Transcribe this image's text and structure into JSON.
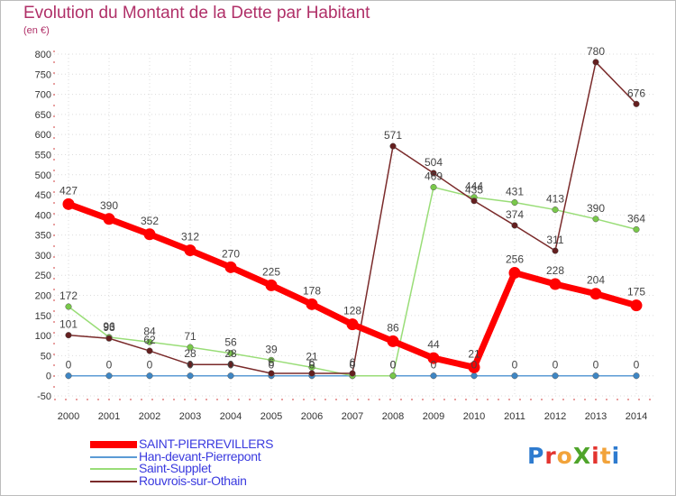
{
  "title": "Evolution du Montant de la Dette par Habitant",
  "unit": "(en €)",
  "logo": {
    "text": "ProXiti",
    "colors": [
      "#2e7bcf",
      "#e3342f",
      "#f2a33a",
      "#4fa42a",
      "#e3342f",
      "#f2a33a",
      "#2e7bcf"
    ]
  },
  "chart_data": {
    "type": "line",
    "title": "Evolution du Montant de la Dette par Habitant",
    "ylabel": "(en €)",
    "xlabel": "",
    "ylim": [
      -50,
      800
    ],
    "yticks": [
      -50,
      0,
      50,
      100,
      150,
      200,
      250,
      300,
      350,
      400,
      450,
      500,
      550,
      600,
      650,
      700,
      750,
      800
    ],
    "x": [
      "2000",
      "2001",
      "2002",
      "2003",
      "2004",
      "2005",
      "2006",
      "2007",
      "2008",
      "2009",
      "2010",
      "2011",
      "2012",
      "2013",
      "2014"
    ],
    "grid": true,
    "legend": "bottom-left",
    "series": [
      {
        "name": "Han-devant-Pierrepont",
        "color": "#5b9bd5",
        "marker": "#3e86c4",
        "values": [
          0,
          0,
          0,
          0,
          0,
          0,
          0,
          0,
          0,
          0,
          0,
          0,
          0,
          0,
          0
        ],
        "labels": [
          "0",
          "0",
          "0",
          "0",
          "0",
          "0",
          "0",
          "0",
          "0",
          "0",
          "0",
          "0",
          "0",
          "0",
          "0"
        ]
      },
      {
        "name": "Saint-Supplet",
        "color": "#99dd77",
        "marker": "#79c84a",
        "values": [
          172,
          96,
          84,
          71,
          56,
          39,
          21,
          0,
          0,
          469,
          444,
          431,
          413,
          390,
          364
        ],
        "labels": [
          "172",
          "96",
          "84",
          "71",
          "56",
          "39",
          "21",
          "0",
          "0",
          "469",
          "444",
          "431",
          "413",
          "390",
          "364"
        ]
      },
      {
        "name": "Rouvrois-sur-Othain",
        "color": "#7a2a2a",
        "marker": "#641f1f",
        "values": [
          101,
          93,
          62,
          28,
          28,
          6,
          6,
          6,
          571,
          504,
          435,
          374,
          311,
          780,
          676
        ],
        "labels": [
          "101",
          "93",
          "62",
          "28",
          "28",
          "6",
          "6",
          "6",
          "571",
          "504",
          "435",
          "374",
          "311",
          "780",
          "676"
        ]
      },
      {
        "name": "SAINT-PIERREVILLERS",
        "color": "#ff0000",
        "marker": "#ff0000",
        "values": [
          427,
          390,
          352,
          312,
          270,
          225,
          178,
          128,
          86,
          44,
          21,
          256,
          228,
          204,
          175
        ],
        "labels": [
          "427",
          "390",
          "352",
          "312",
          "270",
          "225",
          "178",
          "128",
          "86",
          "44",
          "21",
          "256",
          "228",
          "204",
          "175"
        ]
      }
    ],
    "legend_order": [
      "SAINT-PIERREVILLERS",
      "Han-devant-Pierrepont",
      "Saint-Supplet",
      "Rouvrois-sur-Othain"
    ]
  }
}
